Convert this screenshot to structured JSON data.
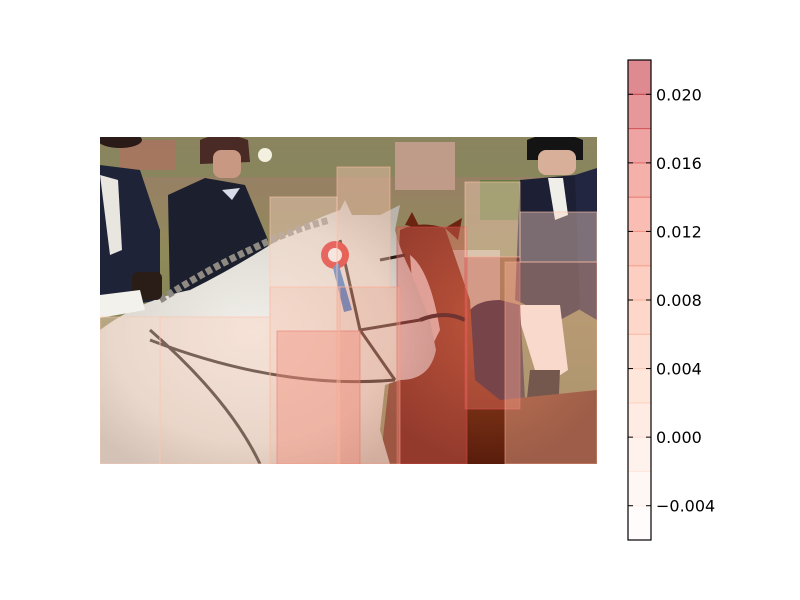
{
  "chart_data": {
    "type": "heatmap",
    "description": "Attribution heatmap overlay (semi-transparent red rectangles) on a photograph of riders on a white/grey pony and a chestnut horse; colorbar on the right.",
    "colormap": "Reds",
    "colorbar": {
      "min": -0.006,
      "max": 0.022,
      "ticks": [
        -0.004,
        0.0,
        0.004,
        0.008,
        0.012,
        0.016,
        0.02
      ],
      "tick_labels": [
        "−0.004",
        "0.000",
        "0.004",
        "0.008",
        "0.012",
        "0.016",
        "0.020"
      ],
      "bands": 14
    },
    "image_extent": {
      "x": [
        0,
        497
      ],
      "y": [
        0,
        327
      ]
    },
    "overlay_regions": [
      {
        "x0": 177,
        "y0": 194,
        "x1": 260,
        "y1": 327,
        "value": 0.015
      },
      {
        "x0": 297,
        "y0": 90,
        "x1": 367,
        "y1": 327,
        "value": 0.016
      },
      {
        "x0": 365,
        "y0": 120,
        "x1": 420,
        "y1": 272,
        "value": 0.015
      },
      {
        "x0": 237,
        "y0": 150,
        "x1": 300,
        "y1": 327,
        "value": 0.009
      },
      {
        "x0": 170,
        "y0": 150,
        "x1": 240,
        "y1": 327,
        "value": 0.006
      },
      {
        "x0": 237,
        "y0": 30,
        "x1": 290,
        "y1": 150,
        "value": 0.004
      },
      {
        "x0": 405,
        "y0": 125,
        "x1": 497,
        "y1": 327,
        "value": 0.007
      },
      {
        "x0": 60,
        "y0": 180,
        "x1": 170,
        "y1": 327,
        "value": 0.003
      },
      {
        "x0": 0,
        "y0": 180,
        "x1": 60,
        "y1": 327,
        "value": 0.002
      },
      {
        "x0": 365,
        "y0": 45,
        "x1": 420,
        "y1": 120,
        "value": 0.003
      },
      {
        "x0": 170,
        "y0": 60,
        "x1": 237,
        "y1": 150,
        "value": 0.002
      },
      {
        "x0": 420,
        "y0": 75,
        "x1": 497,
        "y1": 125,
        "value": 0.002
      }
    ]
  }
}
